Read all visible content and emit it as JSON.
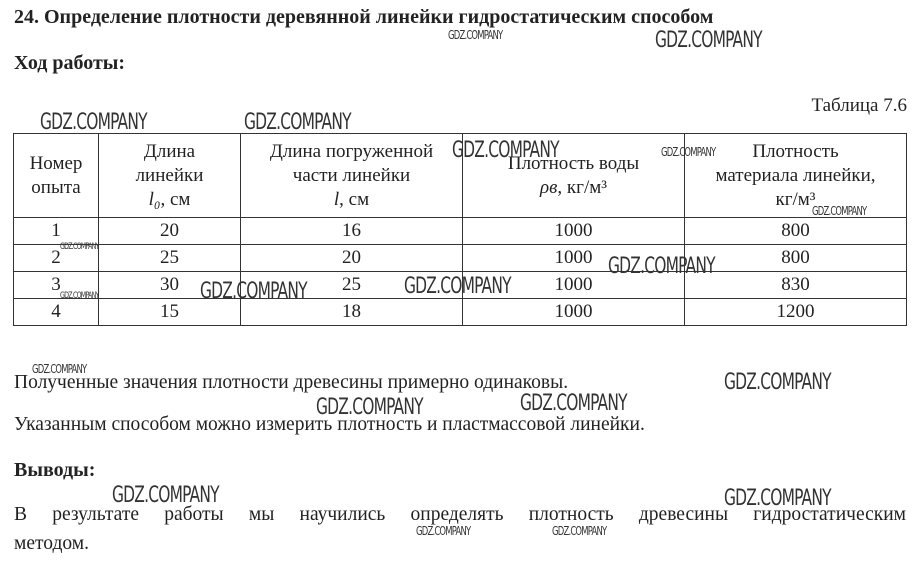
{
  "title": "24. Определение плотности деревянной линейки гидростатическим способом",
  "progress_heading": "Ход работы:",
  "table_caption": "Таблица 7.6",
  "table": {
    "headers": [
      {
        "line1": "Номер",
        "line2": "опыта"
      },
      {
        "line1": "Длина",
        "line2": "линейки",
        "symbol": "l₀",
        "unit": ", см"
      },
      {
        "line1": "Длина погруженной",
        "line2": "части линейки",
        "symbol": "l",
        "unit": ", см"
      },
      {
        "line1": "Плотность воды",
        "symbol": "ρв",
        "unit": ", кг/м³"
      },
      {
        "line1": "Плотность",
        "line2": "материала линейки,",
        "unit": "кг/м³"
      }
    ],
    "rows": [
      [
        "1",
        "20",
        "16",
        "1000",
        "800"
      ],
      [
        "2",
        "25",
        "20",
        "1000",
        "800"
      ],
      [
        "3",
        "30",
        "25",
        "1000",
        "830"
      ],
      [
        "4",
        "15",
        "18",
        "1000",
        "1200"
      ]
    ]
  },
  "paragraphs": [
    "Полученные значения плотности древесины примерно одинаковы.",
    "Указанным способом можно измерить плотность и пластмассовой линейки."
  ],
  "conclusions_heading": "Выводы:",
  "conclusion_line1": "В результате работы мы научились определять плотность древесины гидростатическим",
  "conclusion_line2": "методом.",
  "watermark": "GDZ.COMPANY"
}
